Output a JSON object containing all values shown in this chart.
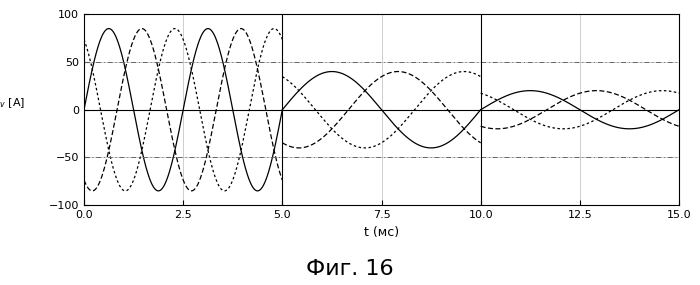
{
  "title": "Фиг. 16",
  "xlabel": "t (мс)",
  "ylabel": "i_inv [A]",
  "xlim": [
    0,
    15
  ],
  "ylim": [
    -100,
    100
  ],
  "xticks": [
    0,
    2.5,
    5,
    7.5,
    10,
    12.5,
    15
  ],
  "yticks": [
    -100,
    -50,
    0,
    50,
    100
  ],
  "background_color": "#ffffff",
  "grid_color": "#000000",
  "line_color": "#000000",
  "dashed_line_color": "#555555",
  "phase_shift": 2.094395,
  "section1": {
    "t_start": 0,
    "t_end": 5,
    "amplitude": 85,
    "frequency_hz": 400,
    "n_points": 500
  },
  "section2": {
    "t_start": 5,
    "t_end": 10,
    "amplitude": 40,
    "frequency_hz": 200,
    "n_points": 500
  },
  "section3": {
    "t_start": 10,
    "t_end": 15,
    "amplitude": 20,
    "frequency_hz": 200,
    "n_points": 500
  },
  "hlines": [
    50,
    -50
  ],
  "vlines": [
    5,
    10
  ],
  "figsize": [
    7.0,
    2.85
  ],
  "dpi": 100
}
